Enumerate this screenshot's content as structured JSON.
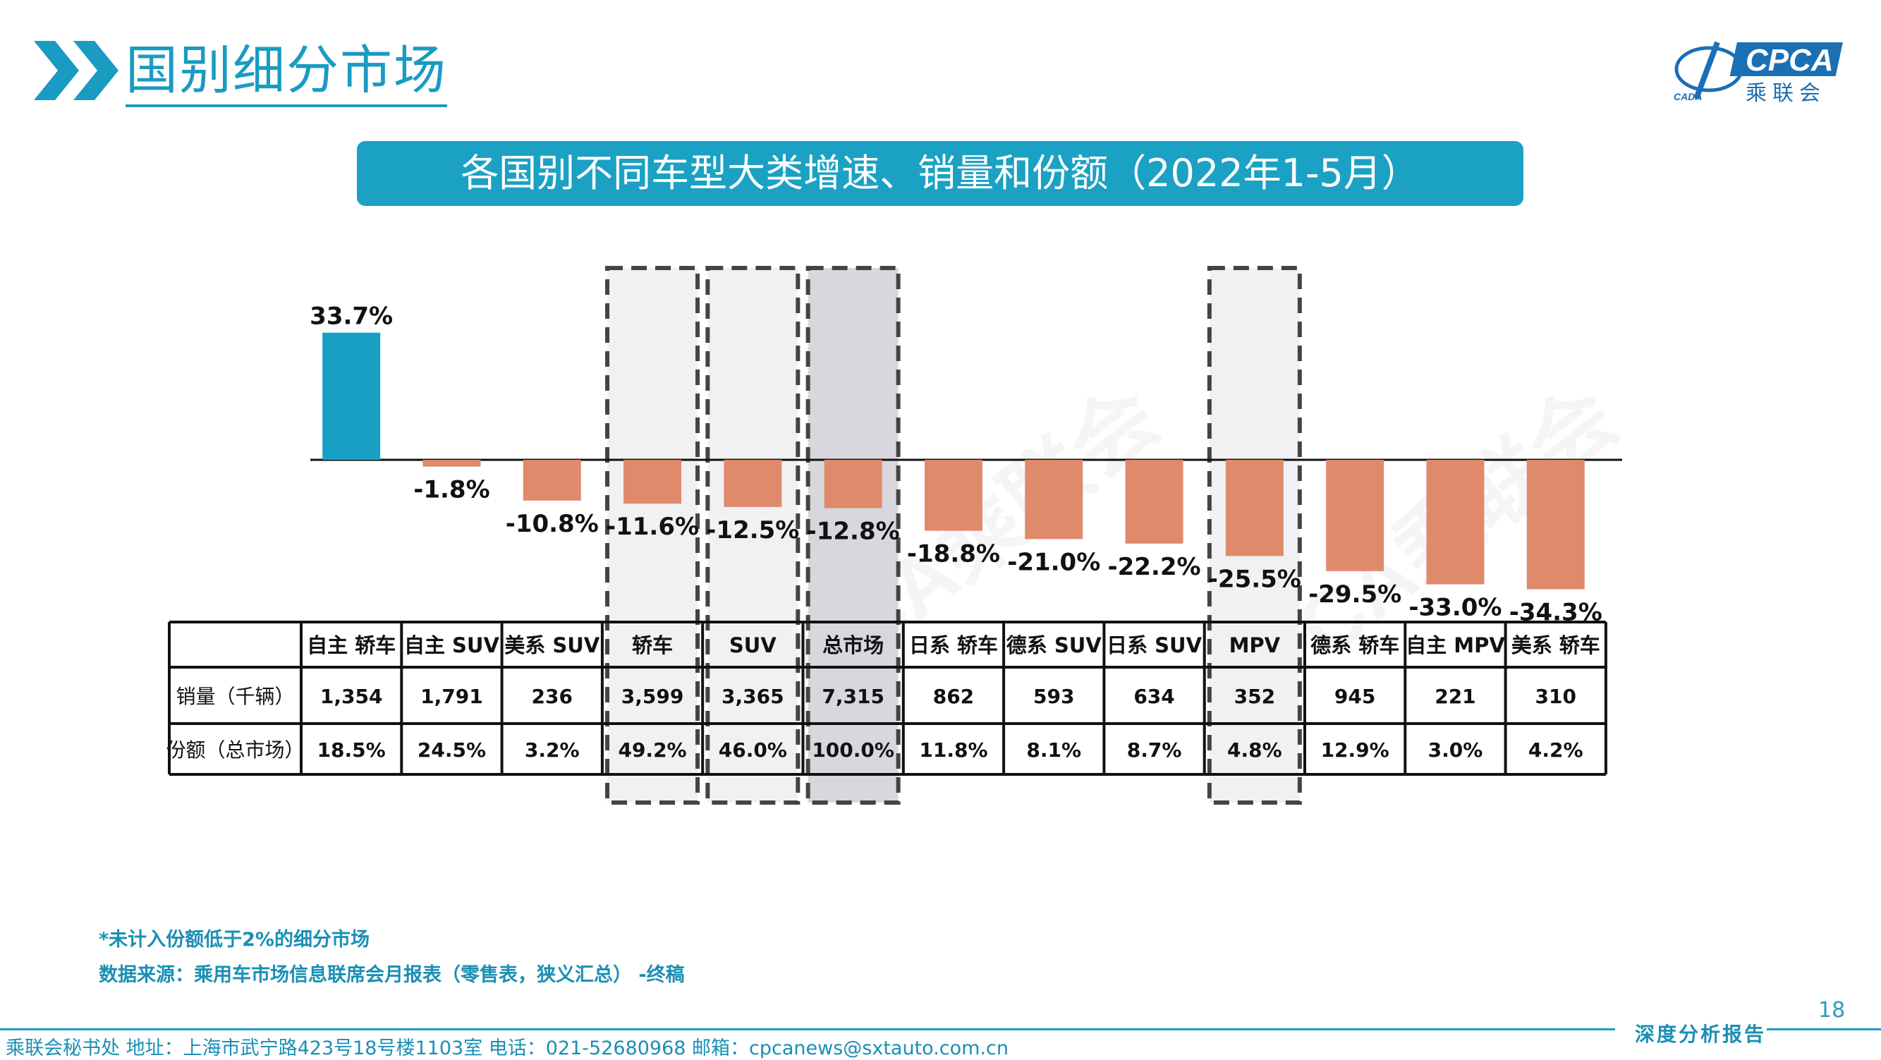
{
  "header": {
    "title": "国别细分市场",
    "logo_text": "CPCA",
    "logo_subtext": "乘联会",
    "logo_mark": "CADA"
  },
  "banner": {
    "title": "各国别不同车型大类增速、销量和份额（2022年1-5月）"
  },
  "watermark": "CPCA乘联会",
  "colors": {
    "positive": "#17a0c4",
    "negative": "#e08a6c",
    "accent": "#1a9bc2"
  },
  "chart_data": {
    "type": "bar",
    "categories": [
      "自主 轿车",
      "自主 SUV",
      "美系 SUV",
      "轿车",
      "SUV",
      "总市场",
      "日系 轿车",
      "德系 SUV",
      "日系 SUV",
      "MPV",
      "德系 轿车",
      "自主 MPV",
      "美系 轿车"
    ],
    "values": [
      33.7,
      -1.8,
      -10.8,
      -11.6,
      -12.5,
      -12.8,
      -18.8,
      -21.0,
      -22.2,
      -25.5,
      -29.5,
      -33.0,
      -34.3
    ],
    "value_labels": [
      "33.7%",
      "-1.8%",
      "-10.8%",
      "-11.6%",
      "-12.5%",
      "-12.8%",
      "-18.8%",
      "-21.0%",
      "-22.2%",
      "-25.5%",
      "-29.5%",
      "-33.0%",
      "-34.3%"
    ],
    "highlighted_categories": [
      "轿车",
      "SUV",
      "总市场",
      "MPV"
    ],
    "table": {
      "row_labels": [
        "销量（千辆）",
        "份额（总市场）"
      ],
      "sales": [
        "1,354",
        "1,791",
        "236",
        "3,599",
        "3,365",
        "7,315",
        "862",
        "593",
        "634",
        "352",
        "945",
        "221",
        "310"
      ],
      "share": [
        "18.5%",
        "24.5%",
        "3.2%",
        "49.2%",
        "46.0%",
        "100.0%",
        "11.8%",
        "8.1%",
        "8.7%",
        "4.8%",
        "12.9%",
        "3.0%",
        "4.2%"
      ]
    }
  },
  "notes": {
    "note1": "*未计入份额低于2%的细分市场",
    "note2": "数据来源：乘用车市场信息联席会月报表（零售表，狭义汇总） -终稿"
  },
  "footer": {
    "text": "乘联会秘书处   地址：上海市武宁路423号18号楼1103室  电话：021-52680968   邮箱：cpcanews@sxtauto.com.cn",
    "tagline": "深度分析报告",
    "page_number": "18"
  }
}
